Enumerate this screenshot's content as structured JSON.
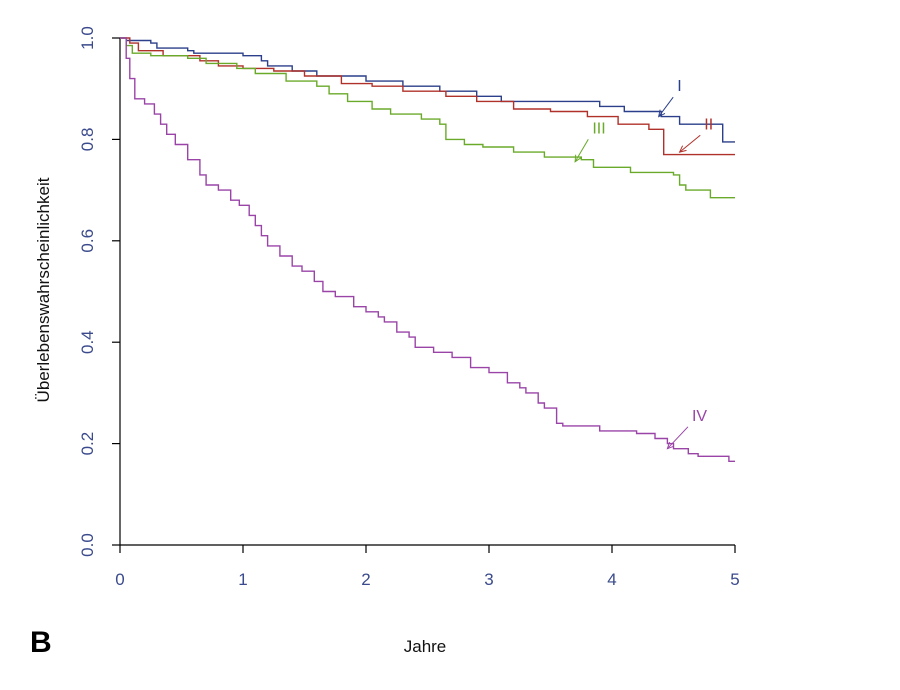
{
  "panel_label": "B",
  "chart_data": {
    "type": "line",
    "title": "",
    "xlabel": "Jahre",
    "ylabel": "Überlebenswahrscheinlichkeit",
    "xlim": [
      0,
      5
    ],
    "ylim": [
      0,
      1
    ],
    "x_ticks": [
      "0",
      "1",
      "2",
      "3",
      "4",
      "5"
    ],
    "y_ticks": [
      "0.0",
      "0.2",
      "0.4",
      "0.6",
      "0.8",
      "1.0"
    ],
    "grid": false,
    "legend": "none",
    "colors": {
      "axis": "#000000",
      "tick_text": "#3a4a8c"
    },
    "series": [
      {
        "name": "I",
        "color": "#2b3f8a",
        "step": true,
        "points": [
          [
            0,
            1.0
          ],
          [
            0.05,
            0.995
          ],
          [
            0.25,
            0.99
          ],
          [
            0.3,
            0.98
          ],
          [
            0.55,
            0.975
          ],
          [
            0.6,
            0.97
          ],
          [
            1.0,
            0.965
          ],
          [
            1.15,
            0.955
          ],
          [
            1.2,
            0.945
          ],
          [
            1.4,
            0.935
          ],
          [
            1.6,
            0.925
          ],
          [
            2.0,
            0.915
          ],
          [
            2.3,
            0.905
          ],
          [
            2.6,
            0.895
          ],
          [
            2.9,
            0.885
          ],
          [
            3.1,
            0.875
          ],
          [
            3.9,
            0.865
          ],
          [
            4.1,
            0.855
          ],
          [
            4.4,
            0.845
          ],
          [
            4.55,
            0.83
          ],
          [
            4.9,
            0.795
          ],
          [
            5.0,
            0.795
          ]
        ]
      },
      {
        "name": "II",
        "color": "#b0302a",
        "step": true,
        "points": [
          [
            0,
            1.0
          ],
          [
            0.08,
            0.99
          ],
          [
            0.15,
            0.975
          ],
          [
            0.35,
            0.965
          ],
          [
            0.65,
            0.955
          ],
          [
            0.8,
            0.945
          ],
          [
            1.0,
            0.94
          ],
          [
            1.25,
            0.935
          ],
          [
            1.5,
            0.925
          ],
          [
            1.8,
            0.91
          ],
          [
            2.05,
            0.905
          ],
          [
            2.3,
            0.895
          ],
          [
            2.65,
            0.885
          ],
          [
            2.9,
            0.875
          ],
          [
            3.2,
            0.86
          ],
          [
            3.5,
            0.855
          ],
          [
            3.8,
            0.845
          ],
          [
            4.05,
            0.83
          ],
          [
            4.3,
            0.82
          ],
          [
            4.42,
            0.77
          ],
          [
            5.0,
            0.77
          ]
        ]
      },
      {
        "name": "III",
        "color": "#6aaa2a",
        "step": true,
        "points": [
          [
            0,
            1.0
          ],
          [
            0.05,
            0.985
          ],
          [
            0.1,
            0.97
          ],
          [
            0.25,
            0.965
          ],
          [
            0.55,
            0.96
          ],
          [
            0.7,
            0.95
          ],
          [
            0.95,
            0.94
          ],
          [
            1.1,
            0.93
          ],
          [
            1.35,
            0.915
          ],
          [
            1.6,
            0.905
          ],
          [
            1.7,
            0.89
          ],
          [
            1.85,
            0.875
          ],
          [
            2.05,
            0.86
          ],
          [
            2.2,
            0.85
          ],
          [
            2.45,
            0.84
          ],
          [
            2.6,
            0.83
          ],
          [
            2.65,
            0.8
          ],
          [
            2.8,
            0.79
          ],
          [
            2.95,
            0.785
          ],
          [
            3.2,
            0.775
          ],
          [
            3.45,
            0.765
          ],
          [
            3.75,
            0.76
          ],
          [
            3.85,
            0.745
          ],
          [
            4.15,
            0.735
          ],
          [
            4.5,
            0.73
          ],
          [
            4.55,
            0.71
          ],
          [
            4.6,
            0.7
          ],
          [
            4.8,
            0.685
          ],
          [
            5.0,
            0.685
          ]
        ]
      },
      {
        "name": "IV",
        "color": "#9a44a8",
        "step": true,
        "points": [
          [
            0,
            1.0
          ],
          [
            0.05,
            0.96
          ],
          [
            0.08,
            0.92
          ],
          [
            0.12,
            0.88
          ],
          [
            0.2,
            0.87
          ],
          [
            0.28,
            0.85
          ],
          [
            0.33,
            0.83
          ],
          [
            0.38,
            0.81
          ],
          [
            0.45,
            0.79
          ],
          [
            0.55,
            0.76
          ],
          [
            0.65,
            0.73
          ],
          [
            0.7,
            0.71
          ],
          [
            0.8,
            0.7
          ],
          [
            0.9,
            0.68
          ],
          [
            0.97,
            0.67
          ],
          [
            1.05,
            0.65
          ],
          [
            1.1,
            0.63
          ],
          [
            1.15,
            0.61
          ],
          [
            1.2,
            0.59
          ],
          [
            1.3,
            0.57
          ],
          [
            1.4,
            0.55
          ],
          [
            1.48,
            0.54
          ],
          [
            1.58,
            0.52
          ],
          [
            1.65,
            0.5
          ],
          [
            1.75,
            0.49
          ],
          [
            1.9,
            0.47
          ],
          [
            2.0,
            0.46
          ],
          [
            2.1,
            0.45
          ],
          [
            2.15,
            0.44
          ],
          [
            2.25,
            0.42
          ],
          [
            2.35,
            0.41
          ],
          [
            2.4,
            0.39
          ],
          [
            2.55,
            0.38
          ],
          [
            2.7,
            0.37
          ],
          [
            2.85,
            0.35
          ],
          [
            3.0,
            0.34
          ],
          [
            3.15,
            0.32
          ],
          [
            3.25,
            0.31
          ],
          [
            3.3,
            0.3
          ],
          [
            3.4,
            0.28
          ],
          [
            3.45,
            0.27
          ],
          [
            3.55,
            0.24
          ],
          [
            3.6,
            0.235
          ],
          [
            3.9,
            0.225
          ],
          [
            4.2,
            0.22
          ],
          [
            4.35,
            0.21
          ],
          [
            4.45,
            0.2
          ],
          [
            4.5,
            0.19
          ],
          [
            4.62,
            0.18
          ],
          [
            4.7,
            0.175
          ],
          [
            4.95,
            0.165
          ],
          [
            5.0,
            0.165
          ]
        ]
      }
    ],
    "annotations": [
      {
        "text": "I",
        "series": "I",
        "color": "#2b3f8a",
        "label_xy": [
          4.53,
          0.895
        ],
        "arrow_to": [
          4.38,
          0.845
        ]
      },
      {
        "text": "II",
        "series": "II",
        "color": "#b0302a",
        "label_xy": [
          4.75,
          0.82
        ],
        "arrow_to": [
          4.55,
          0.775
        ]
      },
      {
        "text": "III",
        "series": "III",
        "color": "#6aaa2a",
        "label_xy": [
          3.84,
          0.812
        ],
        "arrow_to": [
          3.7,
          0.756
        ]
      },
      {
        "text": "IV",
        "series": "IV",
        "color": "#9a44a8",
        "label_xy": [
          4.65,
          0.245
        ],
        "arrow_to": [
          4.45,
          0.19
        ]
      }
    ]
  }
}
